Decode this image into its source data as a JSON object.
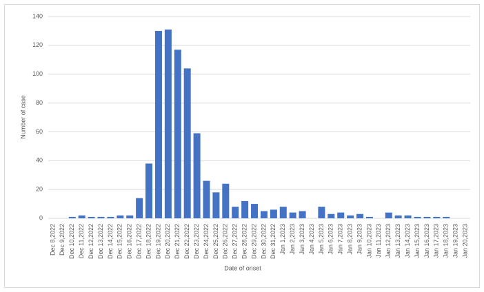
{
  "chart_data": {
    "type": "bar",
    "x_label": "Date of onset",
    "y_label": "Number of case",
    "categories": [
      "Dec 8,2022",
      "Dec 9,2022",
      "Dec 10,2022",
      "Dec 11,2022",
      "Dec 12,2022",
      "Dec 13,2022",
      "Dec 14,2022",
      "Dec 15,2022",
      "Dec 16,2022",
      "Dec 17,2022",
      "Dec 18,2022",
      "Dec 19,2022",
      "Dec 20,2022",
      "Dec 21,2022",
      "Dec 22,2022",
      "Dec 23,2022",
      "Dec 24,2022",
      "Dec 25,2022",
      "Dec 26,2022",
      "Dec 27,2022",
      "Dec 28,2022",
      "Dec 29,2022",
      "Dec 30,2022",
      "Dec 31,2022",
      "Jan 1,2023",
      "Jan 2,2023",
      "Jan 3,2023",
      "Jan 4,2023",
      "Jan 5,2023",
      "Jan 6,2023",
      "Jan 7,2023",
      "Jan 8,2023",
      "Jan 9,2023",
      "Jan 10,2023",
      "Jan 11,2023",
      "Jan 12,2023",
      "Jan 13,2023",
      "Jan 14,2023",
      "Jan 15,2023",
      "Jan 16,2023",
      "Jan 17,2023",
      "Jan 18,2023",
      "Jan 19,2023",
      "Jan 20,2023"
    ],
    "values": [
      0,
      0,
      1,
      2,
      1,
      1,
      1,
      2,
      2,
      14,
      38,
      130,
      131,
      117,
      104,
      59,
      26,
      18,
      24,
      8,
      12,
      10,
      5,
      6,
      8,
      4,
      5,
      0,
      8,
      3,
      4,
      2,
      3,
      1,
      0,
      4,
      2,
      2,
      1,
      1,
      1,
      1,
      0,
      0
    ],
    "color": "#4472c4",
    "ylim": [
      0,
      140
    ],
    "yticks": [
      0,
      20,
      40,
      60,
      80,
      100,
      120,
      140
    ],
    "grid": true
  }
}
